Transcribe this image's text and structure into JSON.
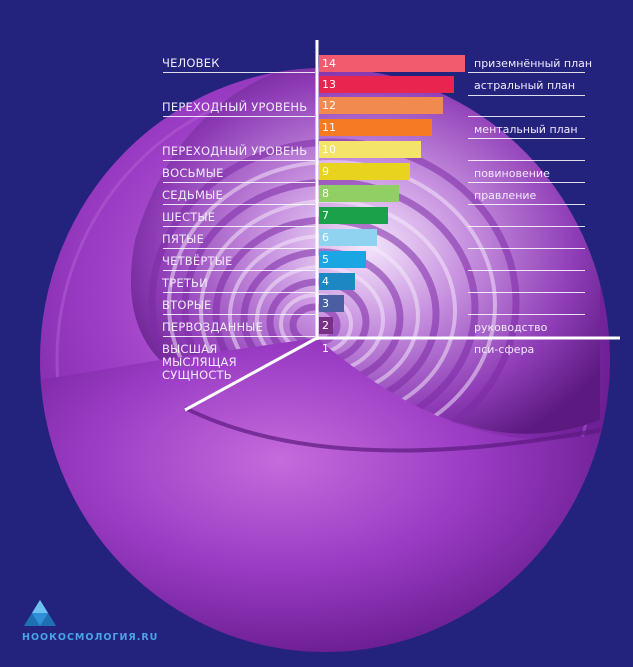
{
  "left_labels": [
    {
      "text": "ЧЕЛОВЕК",
      "level": 14
    },
    {
      "text": "ПЕРЕХОДНЫЙ УРОВЕНЬ",
      "level": 12
    },
    {
      "text": "ПЕРЕХОДНЫЙ УРОВЕНЬ",
      "level": 10
    },
    {
      "text": "ВОСЬМЫЕ",
      "level": 9
    },
    {
      "text": "СЕДЬМЫЕ",
      "level": 8
    },
    {
      "text": "ШЕСТЫЕ",
      "level": 7
    },
    {
      "text": "ПЯТЫЕ",
      "level": 6
    },
    {
      "text": "ЧЕТВЁРТЫЕ",
      "level": 5
    },
    {
      "text": "ТРЕТЬИ",
      "level": 4
    },
    {
      "text": "ВТОРЫЕ",
      "level": 3
    },
    {
      "text": "ПЕРВОЗДАННЫЕ",
      "level": 2
    },
    {
      "text": "ВЫСШАЯ\nМЫСЛЯЩАЯ\nСУЩНОСТЬ",
      "level": 1
    }
  ],
  "right_labels": [
    {
      "text": "приземнённый план",
      "level": 14
    },
    {
      "text": "астральный план",
      "level": 13
    },
    {
      "text": "ментальный план",
      "level": 11
    },
    {
      "text": "повиновение",
      "level": 9
    },
    {
      "text": "правление",
      "level": 8
    },
    {
      "text": "руководство",
      "level": 2
    },
    {
      "text": "пси-сфера",
      "level": 1
    }
  ],
  "levels": [
    {
      "n": "14",
      "color": "#f25a6e"
    },
    {
      "n": "13",
      "color": "#e8254f"
    },
    {
      "n": "12",
      "color": "#f08a4f"
    },
    {
      "n": "11",
      "color": "#f57a23"
    },
    {
      "n": "10",
      "color": "#f4e46a"
    },
    {
      "n": "9",
      "color": "#e8d31e"
    },
    {
      "n": "8",
      "color": "#8fcf63"
    },
    {
      "n": "7",
      "color": "#1aa14a"
    },
    {
      "n": "6",
      "color": "#8fd3f0"
    },
    {
      "n": "5",
      "color": "#19a6e3"
    },
    {
      "n": "4",
      "color": "#1b88c3"
    },
    {
      "n": "3",
      "color": "#4b5ea2"
    },
    {
      "n": "2",
      "color": "#7a2f86"
    },
    {
      "n": "1",
      "color": ""
    }
  ],
  "logo": {
    "text": "НООКОСМОЛОГИЯ.RU",
    "icon": "pyramid-icon",
    "color": "#4aa3e6"
  },
  "colors": {
    "background": "#23237e",
    "sphere": "#8b2fb5",
    "text": "#ffffff"
  }
}
